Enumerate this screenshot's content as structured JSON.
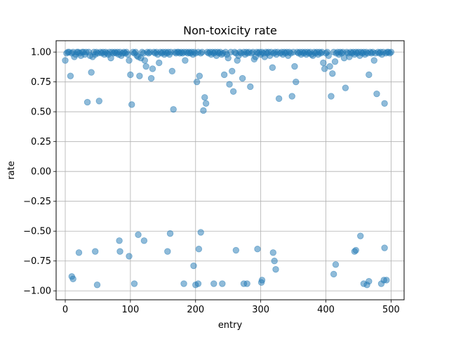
{
  "chart_data": {
    "type": "scatter",
    "title": "Non-toxicity rate",
    "xlabel": "entry",
    "ylabel": "rate",
    "xlim": [
      -14,
      520
    ],
    "ylim": [
      -1.075,
      1.095
    ],
    "xticks": [
      0,
      100,
      200,
      300,
      400,
      500
    ],
    "xtick_labels": [
      "0",
      "100",
      "200",
      "300",
      "400",
      "500"
    ],
    "yticks": [
      -1.0,
      -0.75,
      -0.5,
      -0.25,
      0.0,
      0.25,
      0.5,
      0.75,
      1.0
    ],
    "ytick_labels": [
      "−1.00",
      "−0.75",
      "−0.50",
      "−0.25",
      "0.00",
      "0.25",
      "0.50",
      "0.75",
      "1.00"
    ],
    "grid": true,
    "marker_color": "#1f77b4",
    "points": [
      [
        0,
        0.93
      ],
      [
        2,
        0.99
      ],
      [
        4,
        1.0
      ],
      [
        6,
        1.0
      ],
      [
        8,
        0.8
      ],
      [
        10,
        0.99
      ],
      [
        12,
        1.0
      ],
      [
        14,
        0.96
      ],
      [
        16,
        0.98
      ],
      [
        18,
        1.0
      ],
      [
        20,
        1.0
      ],
      [
        22,
        0.99
      ],
      [
        24,
        0.97
      ],
      [
        26,
        1.0
      ],
      [
        28,
        1.0
      ],
      [
        30,
        0.98
      ],
      [
        32,
        1.0
      ],
      [
        34,
        0.58
      ],
      [
        36,
        1.0
      ],
      [
        38,
        0.97
      ],
      [
        40,
        0.83
      ],
      [
        42,
        0.96
      ],
      [
        44,
        1.0
      ],
      [
        46,
        0.98
      ],
      [
        48,
        1.0
      ],
      [
        50,
        0.99
      ],
      [
        52,
        0.59
      ],
      [
        54,
        1.0
      ],
      [
        56,
        0.99
      ],
      [
        58,
        1.0
      ],
      [
        60,
        0.98
      ],
      [
        62,
        1.0
      ],
      [
        64,
        0.99
      ],
      [
        66,
        0.98
      ],
      [
        68,
        1.0
      ],
      [
        70,
        0.95
      ],
      [
        72,
        1.0
      ],
      [
        74,
        0.99
      ],
      [
        76,
        1.0
      ],
      [
        78,
        0.99
      ],
      [
        80,
        1.0
      ],
      [
        82,
        0.98
      ],
      [
        84,
        1.0
      ],
      [
        86,
        0.97
      ],
      [
        88,
        0.99
      ],
      [
        90,
        1.0
      ],
      [
        92,
        0.99
      ],
      [
        94,
        1.0
      ],
      [
        96,
        0.98
      ],
      [
        98,
        0.93
      ],
      [
        100,
        0.81
      ],
      [
        102,
        0.56
      ],
      [
        104,
        1.0
      ],
      [
        106,
        0.99
      ],
      [
        108,
        1.0
      ],
      [
        110,
        0.97
      ],
      [
        112,
        0.96
      ],
      [
        114,
        0.8
      ],
      [
        116,
        0.95
      ],
      [
        118,
        1.0
      ],
      [
        120,
        0.99
      ],
      [
        122,
        0.93
      ],
      [
        124,
        0.88
      ],
      [
        126,
        1.0
      ],
      [
        128,
        0.99
      ],
      [
        130,
        1.0
      ],
      [
        132,
        0.78
      ],
      [
        134,
        0.86
      ],
      [
        136,
        1.0
      ],
      [
        138,
        0.99
      ],
      [
        140,
        1.0
      ],
      [
        142,
        0.98
      ],
      [
        144,
        0.91
      ],
      [
        146,
        1.0
      ],
      [
        148,
        0.99
      ],
      [
        150,
        1.0
      ],
      [
        152,
        0.98
      ],
      [
        154,
        1.0
      ],
      [
        156,
        0.99
      ],
      [
        158,
        1.0
      ],
      [
        160,
        0.98
      ],
      [
        162,
        1.0
      ],
      [
        164,
        0.84
      ],
      [
        166,
        0.52
      ],
      [
        168,
        1.0
      ],
      [
        170,
        0.99
      ],
      [
        172,
        1.0
      ],
      [
        174,
        1.0
      ],
      [
        176,
        0.99
      ],
      [
        178,
        1.0
      ],
      [
        180,
        0.99
      ],
      [
        182,
        1.0
      ],
      [
        184,
        0.93
      ],
      [
        186,
        1.0
      ],
      [
        188,
        0.99
      ],
      [
        190,
        1.0
      ],
      [
        192,
        0.99
      ],
      [
        194,
        1.0
      ],
      [
        196,
        0.98
      ],
      [
        198,
        1.0
      ],
      [
        200,
        0.99
      ],
      [
        202,
        0.75
      ],
      [
        204,
        1.0
      ],
      [
        206,
        0.8
      ],
      [
        208,
        0.99
      ],
      [
        210,
        1.0
      ],
      [
        212,
        0.51
      ],
      [
        214,
        0.62
      ],
      [
        216,
        0.57
      ],
      [
        218,
        1.0
      ],
      [
        220,
        0.99
      ],
      [
        222,
        1.0
      ],
      [
        224,
        0.98
      ],
      [
        226,
        1.0
      ],
      [
        228,
        0.99
      ],
      [
        230,
        1.0
      ],
      [
        232,
        0.97
      ],
      [
        234,
        1.0
      ],
      [
        236,
        0.99
      ],
      [
        238,
        1.0
      ],
      [
        240,
        0.98
      ],
      [
        242,
        0.99
      ],
      [
        244,
        0.81
      ],
      [
        246,
        1.0
      ],
      [
        248,
        0.98
      ],
      [
        250,
        0.95
      ],
      [
        252,
        0.73
      ],
      [
        254,
        1.0
      ],
      [
        256,
        0.84
      ],
      [
        258,
        0.67
      ],
      [
        260,
        1.0
      ],
      [
        262,
        0.99
      ],
      [
        264,
        0.93
      ],
      [
        266,
        0.97
      ],
      [
        268,
        1.0
      ],
      [
        270,
        0.99
      ],
      [
        272,
        0.78
      ],
      [
        274,
        1.0
      ],
      [
        276,
        0.98
      ],
      [
        278,
        1.0
      ],
      [
        280,
        0.99
      ],
      [
        282,
        1.0
      ],
      [
        284,
        0.71
      ],
      [
        286,
        0.99
      ],
      [
        288,
        1.0
      ],
      [
        290,
        0.94
      ],
      [
        292,
        0.96
      ],
      [
        294,
        1.0
      ],
      [
        296,
        0.99
      ],
      [
        298,
        1.0
      ],
      [
        300,
        0.98
      ],
      [
        302,
        1.0
      ],
      [
        304,
        0.99
      ],
      [
        306,
        0.96
      ],
      [
        308,
        1.0
      ],
      [
        310,
        0.99
      ],
      [
        312,
        1.0
      ],
      [
        314,
        0.97
      ],
      [
        316,
        1.0
      ],
      [
        318,
        0.87
      ],
      [
        320,
        0.99
      ],
      [
        322,
        1.0
      ],
      [
        324,
        0.98
      ],
      [
        326,
        1.0
      ],
      [
        328,
        0.61
      ],
      [
        330,
        0.99
      ],
      [
        332,
        1.0
      ],
      [
        334,
        0.98
      ],
      [
        336,
        1.0
      ],
      [
        338,
        0.99
      ],
      [
        340,
        1.0
      ],
      [
        342,
        0.97
      ],
      [
        344,
        1.0
      ],
      [
        346,
        0.99
      ],
      [
        348,
        0.63
      ],
      [
        350,
        1.0
      ],
      [
        352,
        0.88
      ],
      [
        354,
        0.75
      ],
      [
        356,
        1.0
      ],
      [
        358,
        0.99
      ],
      [
        360,
        1.0
      ],
      [
        362,
        0.98
      ],
      [
        364,
        1.0
      ],
      [
        366,
        0.99
      ],
      [
        368,
        1.0
      ],
      [
        370,
        0.98
      ],
      [
        372,
        1.0
      ],
      [
        374,
        0.99
      ],
      [
        376,
        1.0
      ],
      [
        378,
        0.98
      ],
      [
        380,
        0.97
      ],
      [
        382,
        1.0
      ],
      [
        384,
        0.99
      ],
      [
        386,
        1.0
      ],
      [
        388,
        0.98
      ],
      [
        390,
        1.0
      ],
      [
        392,
        0.99
      ],
      [
        394,
        1.0
      ],
      [
        396,
        0.91
      ],
      [
        398,
        0.86
      ],
      [
        400,
        0.99
      ],
      [
        402,
        1.0
      ],
      [
        404,
        0.97
      ],
      [
        406,
        0.88
      ],
      [
        408,
        0.63
      ],
      [
        410,
        0.82
      ],
      [
        412,
        1.0
      ],
      [
        414,
        0.92
      ],
      [
        416,
        0.99
      ],
      [
        418,
        1.0
      ],
      [
        420,
        0.98
      ],
      [
        422,
        1.0
      ],
      [
        424,
        0.99
      ],
      [
        426,
        1.0
      ],
      [
        428,
        0.95
      ],
      [
        430,
        0.7
      ],
      [
        432,
        1.0
      ],
      [
        434,
        0.99
      ],
      [
        436,
        0.96
      ],
      [
        438,
        1.0
      ],
      [
        440,
        0.99
      ],
      [
        442,
        1.0
      ],
      [
        444,
        0.98
      ],
      [
        446,
        1.0
      ],
      [
        448,
        0.99
      ],
      [
        450,
        1.0
      ],
      [
        452,
        0.97
      ],
      [
        454,
        1.0
      ],
      [
        456,
        0.99
      ],
      [
        458,
        1.0
      ],
      [
        460,
        0.98
      ],
      [
        462,
        1.0
      ],
      [
        464,
        0.99
      ],
      [
        466,
        0.81
      ],
      [
        468,
        1.0
      ],
      [
        470,
        0.99
      ],
      [
        472,
        1.0
      ],
      [
        474,
        0.93
      ],
      [
        476,
        0.99
      ],
      [
        478,
        0.65
      ],
      [
        480,
        1.0
      ],
      [
        482,
        0.99
      ],
      [
        484,
        1.0
      ],
      [
        486,
        0.98
      ],
      [
        488,
        1.0
      ],
      [
        490,
        0.57
      ],
      [
        492,
        0.99
      ],
      [
        494,
        1.0
      ],
      [
        496,
        1.0
      ],
      [
        498,
        0.99
      ],
      [
        500,
        1.0
      ],
      [
        10,
        -0.88
      ],
      [
        12,
        -0.9
      ],
      [
        21,
        -0.68
      ],
      [
        46,
        -0.67
      ],
      [
        49,
        -0.95
      ],
      [
        83,
        -0.58
      ],
      [
        84,
        -0.67
      ],
      [
        98,
        -0.71
      ],
      [
        106,
        -0.94
      ],
      [
        112,
        -0.53
      ],
      [
        121,
        -0.58
      ],
      [
        157,
        -0.67
      ],
      [
        161,
        -0.52
      ],
      [
        182,
        -0.94
      ],
      [
        197,
        -0.79
      ],
      [
        200,
        -0.95
      ],
      [
        204,
        -0.94
      ],
      [
        205,
        -0.65
      ],
      [
        208,
        -0.51
      ],
      [
        228,
        -0.94
      ],
      [
        241,
        -0.94
      ],
      [
        262,
        -0.66
      ],
      [
        274,
        -0.94
      ],
      [
        279,
        -0.94
      ],
      [
        295,
        -0.65
      ],
      [
        301,
        -0.93
      ],
      [
        302,
        -0.91
      ],
      [
        319,
        -0.68
      ],
      [
        321,
        -0.75
      ],
      [
        323,
        -0.82
      ],
      [
        412,
        -0.86
      ],
      [
        415,
        -0.78
      ],
      [
        444,
        -0.67
      ],
      [
        446,
        -0.66
      ],
      [
        453,
        -0.54
      ],
      [
        458,
        -0.94
      ],
      [
        463,
        -0.95
      ],
      [
        466,
        -0.92
      ],
      [
        485,
        -0.94
      ],
      [
        489,
        -0.91
      ],
      [
        490,
        -0.64
      ],
      [
        493,
        -0.91
      ]
    ]
  }
}
